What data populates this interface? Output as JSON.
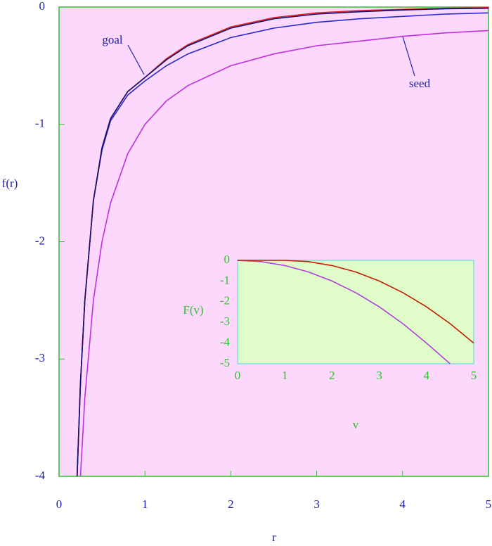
{
  "chart_data": [
    {
      "type": "line",
      "x_label": "r",
      "y_label": "f(r)",
      "x": [
        0.21,
        0.25,
        0.3,
        0.4,
        0.5,
        0.6,
        0.8,
        1,
        1.25,
        1.5,
        2,
        2.5,
        3,
        3.5,
        4,
        4.5,
        5
      ],
      "series": [
        {
          "name": "seed",
          "color": "#c030e0",
          "values": [
            null,
            -4,
            -3.33,
            -2.5,
            -2,
            -1.67,
            -1.25,
            -1,
            -0.8,
            -0.67,
            -0.5,
            -0.4,
            -0.33,
            -0.29,
            -0.25,
            -0.22,
            -0.2
          ]
        },
        {
          "color": "#2828d0",
          "values": [
            -4,
            -3.2,
            -2.5,
            -1.65,
            -1.22,
            -0.97,
            -0.75,
            -0.63,
            -0.5,
            -0.4,
            -0.26,
            -0.18,
            -0.13,
            -0.1,
            -0.08,
            -0.06,
            -0.05
          ]
        },
        {
          "color": "#e02020",
          "values": [
            -4,
            -3.2,
            -2.5,
            -1.65,
            -1.2,
            -0.95,
            -0.72,
            -0.6,
            -0.44,
            -0.32,
            -0.17,
            -0.09,
            -0.05,
            -0.03,
            -0.02,
            -0.01,
            -0.005
          ]
        },
        {
          "name": "goal",
          "color": "#101070",
          "values": [
            -4,
            -3.2,
            -2.5,
            -1.65,
            -1.2,
            -0.95,
            -0.72,
            -0.6,
            -0.45,
            -0.33,
            -0.18,
            -0.1,
            -0.06,
            -0.04,
            -0.025,
            -0.015,
            -0.01
          ]
        }
      ],
      "xlim": [
        0,
        5
      ],
      "ylim": [
        -4,
        0
      ],
      "xticks": [
        0,
        1,
        2,
        3,
        4,
        5
      ],
      "yticks": [
        0,
        -1,
        -2,
        -3,
        -4
      ],
      "background": "#fcd8fc",
      "frame_color": "#30c030",
      "tick_label_color": "#2020b0"
    },
    {
      "type": "line",
      "x_label": "v",
      "y_label": "F(v)",
      "x": [
        0,
        0.5,
        1,
        1.5,
        2,
        2.5,
        3,
        3.5,
        4,
        4.5,
        5
      ],
      "series": [
        {
          "color": "#b040e0",
          "values": [
            0,
            -0.06,
            -0.25,
            -0.56,
            -1,
            -1.56,
            -2.25,
            -3.06,
            -4,
            -5,
            null
          ]
        },
        {
          "color": "#c02000",
          "values": [
            0,
            0,
            0,
            -0.06,
            -0.25,
            -0.56,
            -1,
            -1.56,
            -2.25,
            -3.06,
            -4
          ]
        }
      ],
      "xlim": [
        0,
        5
      ],
      "ylim": [
        -5,
        0
      ],
      "xticks": [
        0,
        1,
        2,
        3,
        4,
        5
      ],
      "yticks": [
        0,
        -1,
        -2,
        -3,
        -4,
        -5
      ],
      "background": "#e0fcc8",
      "frame_color": "#80e0e0",
      "tick_label_color": "#30c030"
    }
  ]
}
